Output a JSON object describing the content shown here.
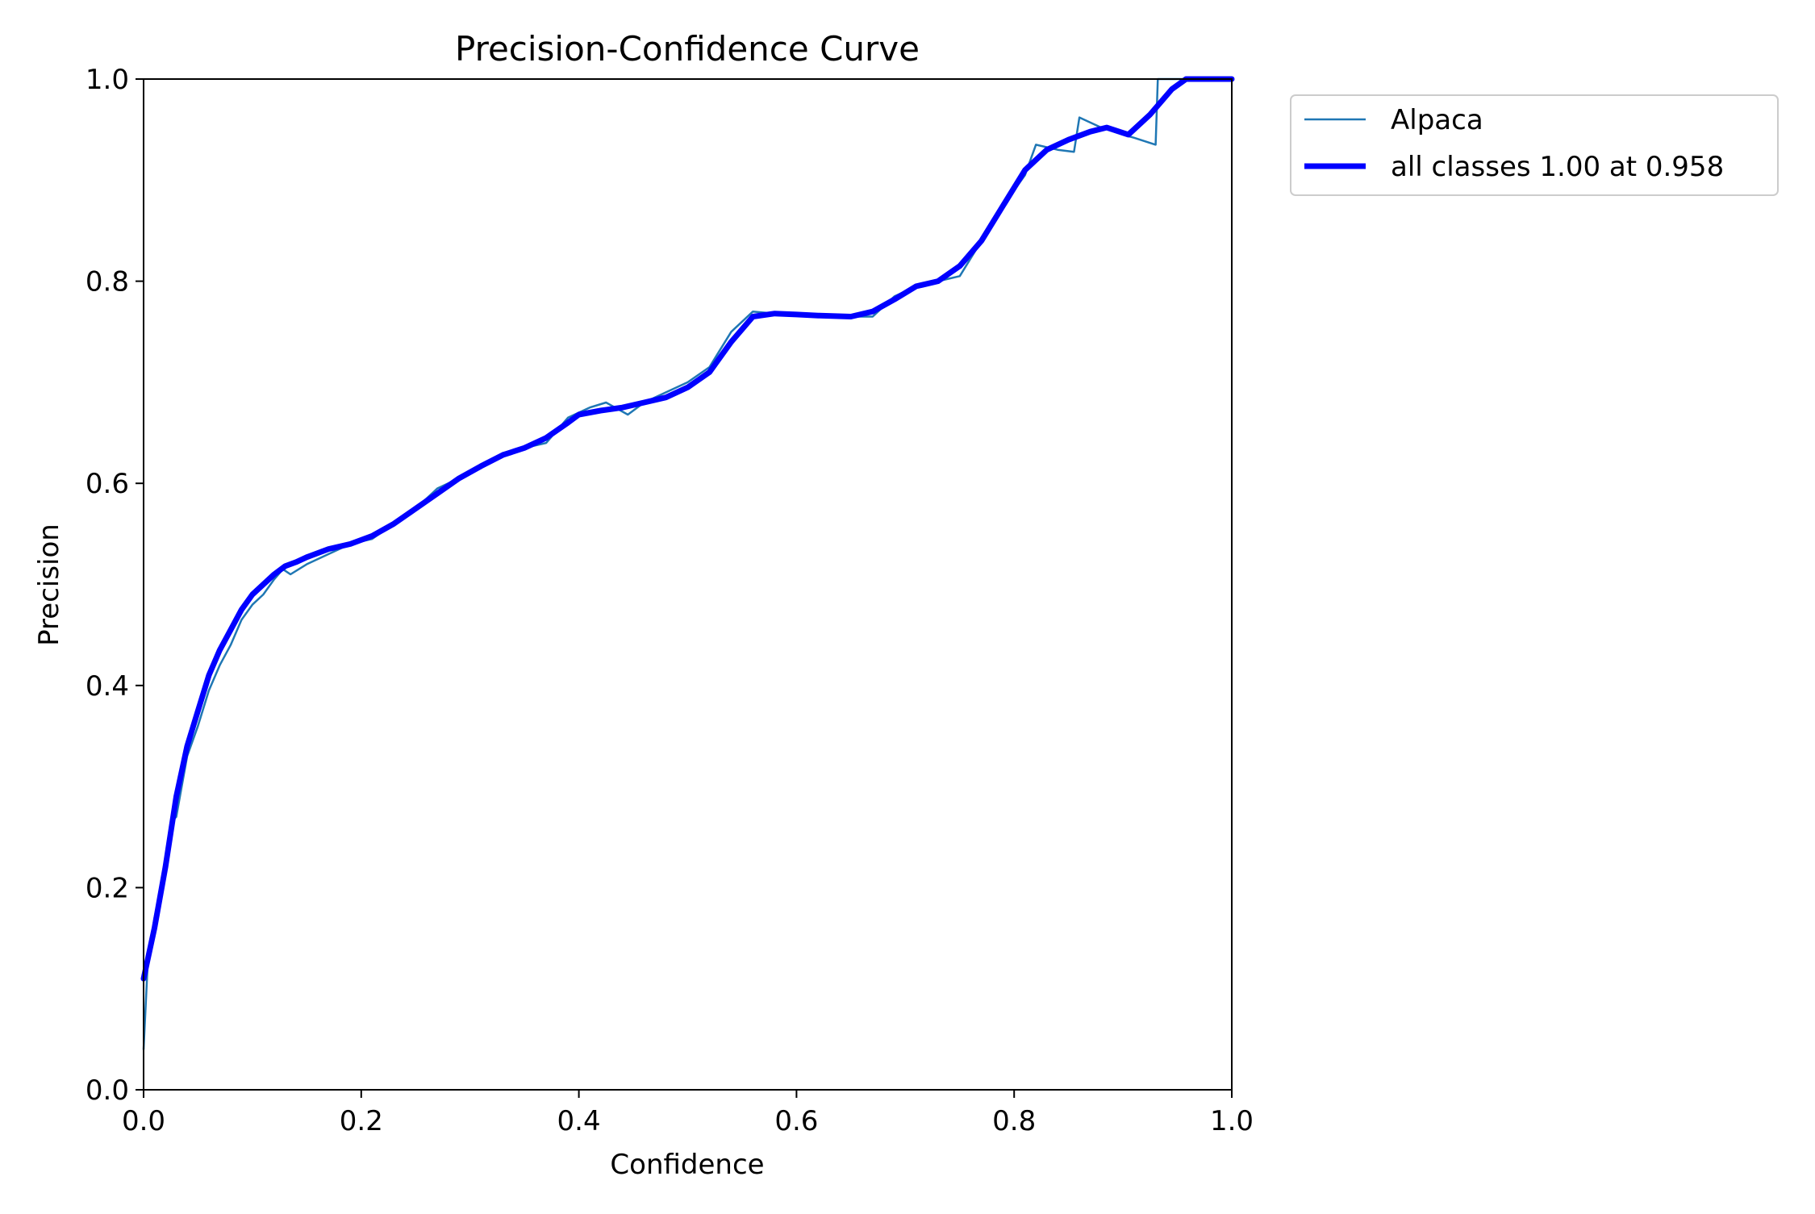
{
  "chart_data": {
    "type": "line",
    "title": "Precision-Confidence Curve",
    "xlabel": "Confidence",
    "ylabel": "Precision",
    "xlim": [
      0,
      1
    ],
    "ylim": [
      0,
      1
    ],
    "xticks": [
      0.0,
      0.2,
      0.4,
      0.6,
      0.8,
      1.0
    ],
    "yticks": [
      0.0,
      0.2,
      0.4,
      0.6,
      0.8,
      1.0
    ],
    "xtick_labels": [
      "0.0",
      "0.2",
      "0.4",
      "0.6",
      "0.8",
      "1.0"
    ],
    "ytick_labels": [
      "0.0",
      "0.2",
      "0.4",
      "0.6",
      "0.8",
      "1.0"
    ],
    "grid": false,
    "legend_position": "outside top-right",
    "series": [
      {
        "name": "Alpaca",
        "color": "#1f77b4",
        "x": [
          0.0,
          0.004,
          0.01,
          0.02,
          0.025,
          0.03,
          0.04,
          0.05,
          0.06,
          0.07,
          0.08,
          0.09,
          0.1,
          0.11,
          0.12,
          0.128,
          0.135,
          0.15,
          0.17,
          0.19,
          0.21,
          0.23,
          0.25,
          0.27,
          0.29,
          0.31,
          0.33,
          0.35,
          0.37,
          0.39,
          0.41,
          0.425,
          0.445,
          0.46,
          0.48,
          0.5,
          0.52,
          0.54,
          0.56,
          0.58,
          0.6,
          0.62,
          0.65,
          0.67,
          0.69,
          0.71,
          0.73,
          0.75,
          0.77,
          0.79,
          0.81,
          0.82,
          0.84,
          0.855,
          0.86,
          0.88,
          0.9,
          0.91,
          0.93,
          0.932,
          0.95,
          0.97,
          1.0
        ],
        "y": [
          0.04,
          0.13,
          0.17,
          0.22,
          0.265,
          0.27,
          0.33,
          0.36,
          0.395,
          0.42,
          0.44,
          0.465,
          0.48,
          0.49,
          0.505,
          0.515,
          0.51,
          0.52,
          0.53,
          0.54,
          0.545,
          0.56,
          0.575,
          0.595,
          0.605,
          0.615,
          0.63,
          0.635,
          0.64,
          0.665,
          0.675,
          0.68,
          0.668,
          0.68,
          0.69,
          0.7,
          0.715,
          0.75,
          0.77,
          0.768,
          0.767,
          0.765,
          0.765,
          0.765,
          0.785,
          0.795,
          0.8,
          0.805,
          0.84,
          0.875,
          0.905,
          0.935,
          0.93,
          0.928,
          0.962,
          0.952,
          0.945,
          0.942,
          0.935,
          1.0,
          1.0,
          1.0,
          1.0
        ]
      },
      {
        "name": "all classes 1.00 at 0.958",
        "color": "#0000ff",
        "x": [
          0.0,
          0.01,
          0.02,
          0.03,
          0.04,
          0.05,
          0.06,
          0.07,
          0.08,
          0.09,
          0.1,
          0.11,
          0.12,
          0.13,
          0.14,
          0.15,
          0.17,
          0.19,
          0.21,
          0.23,
          0.25,
          0.27,
          0.29,
          0.31,
          0.33,
          0.35,
          0.37,
          0.39,
          0.4,
          0.42,
          0.44,
          0.46,
          0.48,
          0.5,
          0.52,
          0.54,
          0.56,
          0.58,
          0.6,
          0.62,
          0.65,
          0.67,
          0.69,
          0.71,
          0.73,
          0.75,
          0.77,
          0.79,
          0.81,
          0.83,
          0.85,
          0.87,
          0.885,
          0.905,
          0.925,
          0.945,
          0.958,
          1.0
        ],
        "y": [
          0.11,
          0.16,
          0.22,
          0.29,
          0.34,
          0.375,
          0.41,
          0.435,
          0.455,
          0.475,
          0.49,
          0.5,
          0.51,
          0.518,
          0.522,
          0.527,
          0.535,
          0.54,
          0.548,
          0.56,
          0.575,
          0.59,
          0.605,
          0.617,
          0.628,
          0.635,
          0.645,
          0.66,
          0.668,
          0.672,
          0.675,
          0.68,
          0.685,
          0.695,
          0.71,
          0.74,
          0.765,
          0.768,
          0.767,
          0.766,
          0.765,
          0.77,
          0.782,
          0.795,
          0.8,
          0.815,
          0.84,
          0.875,
          0.91,
          0.93,
          0.94,
          0.948,
          0.952,
          0.945,
          0.965,
          0.99,
          1.0,
          1.0
        ]
      }
    ]
  }
}
